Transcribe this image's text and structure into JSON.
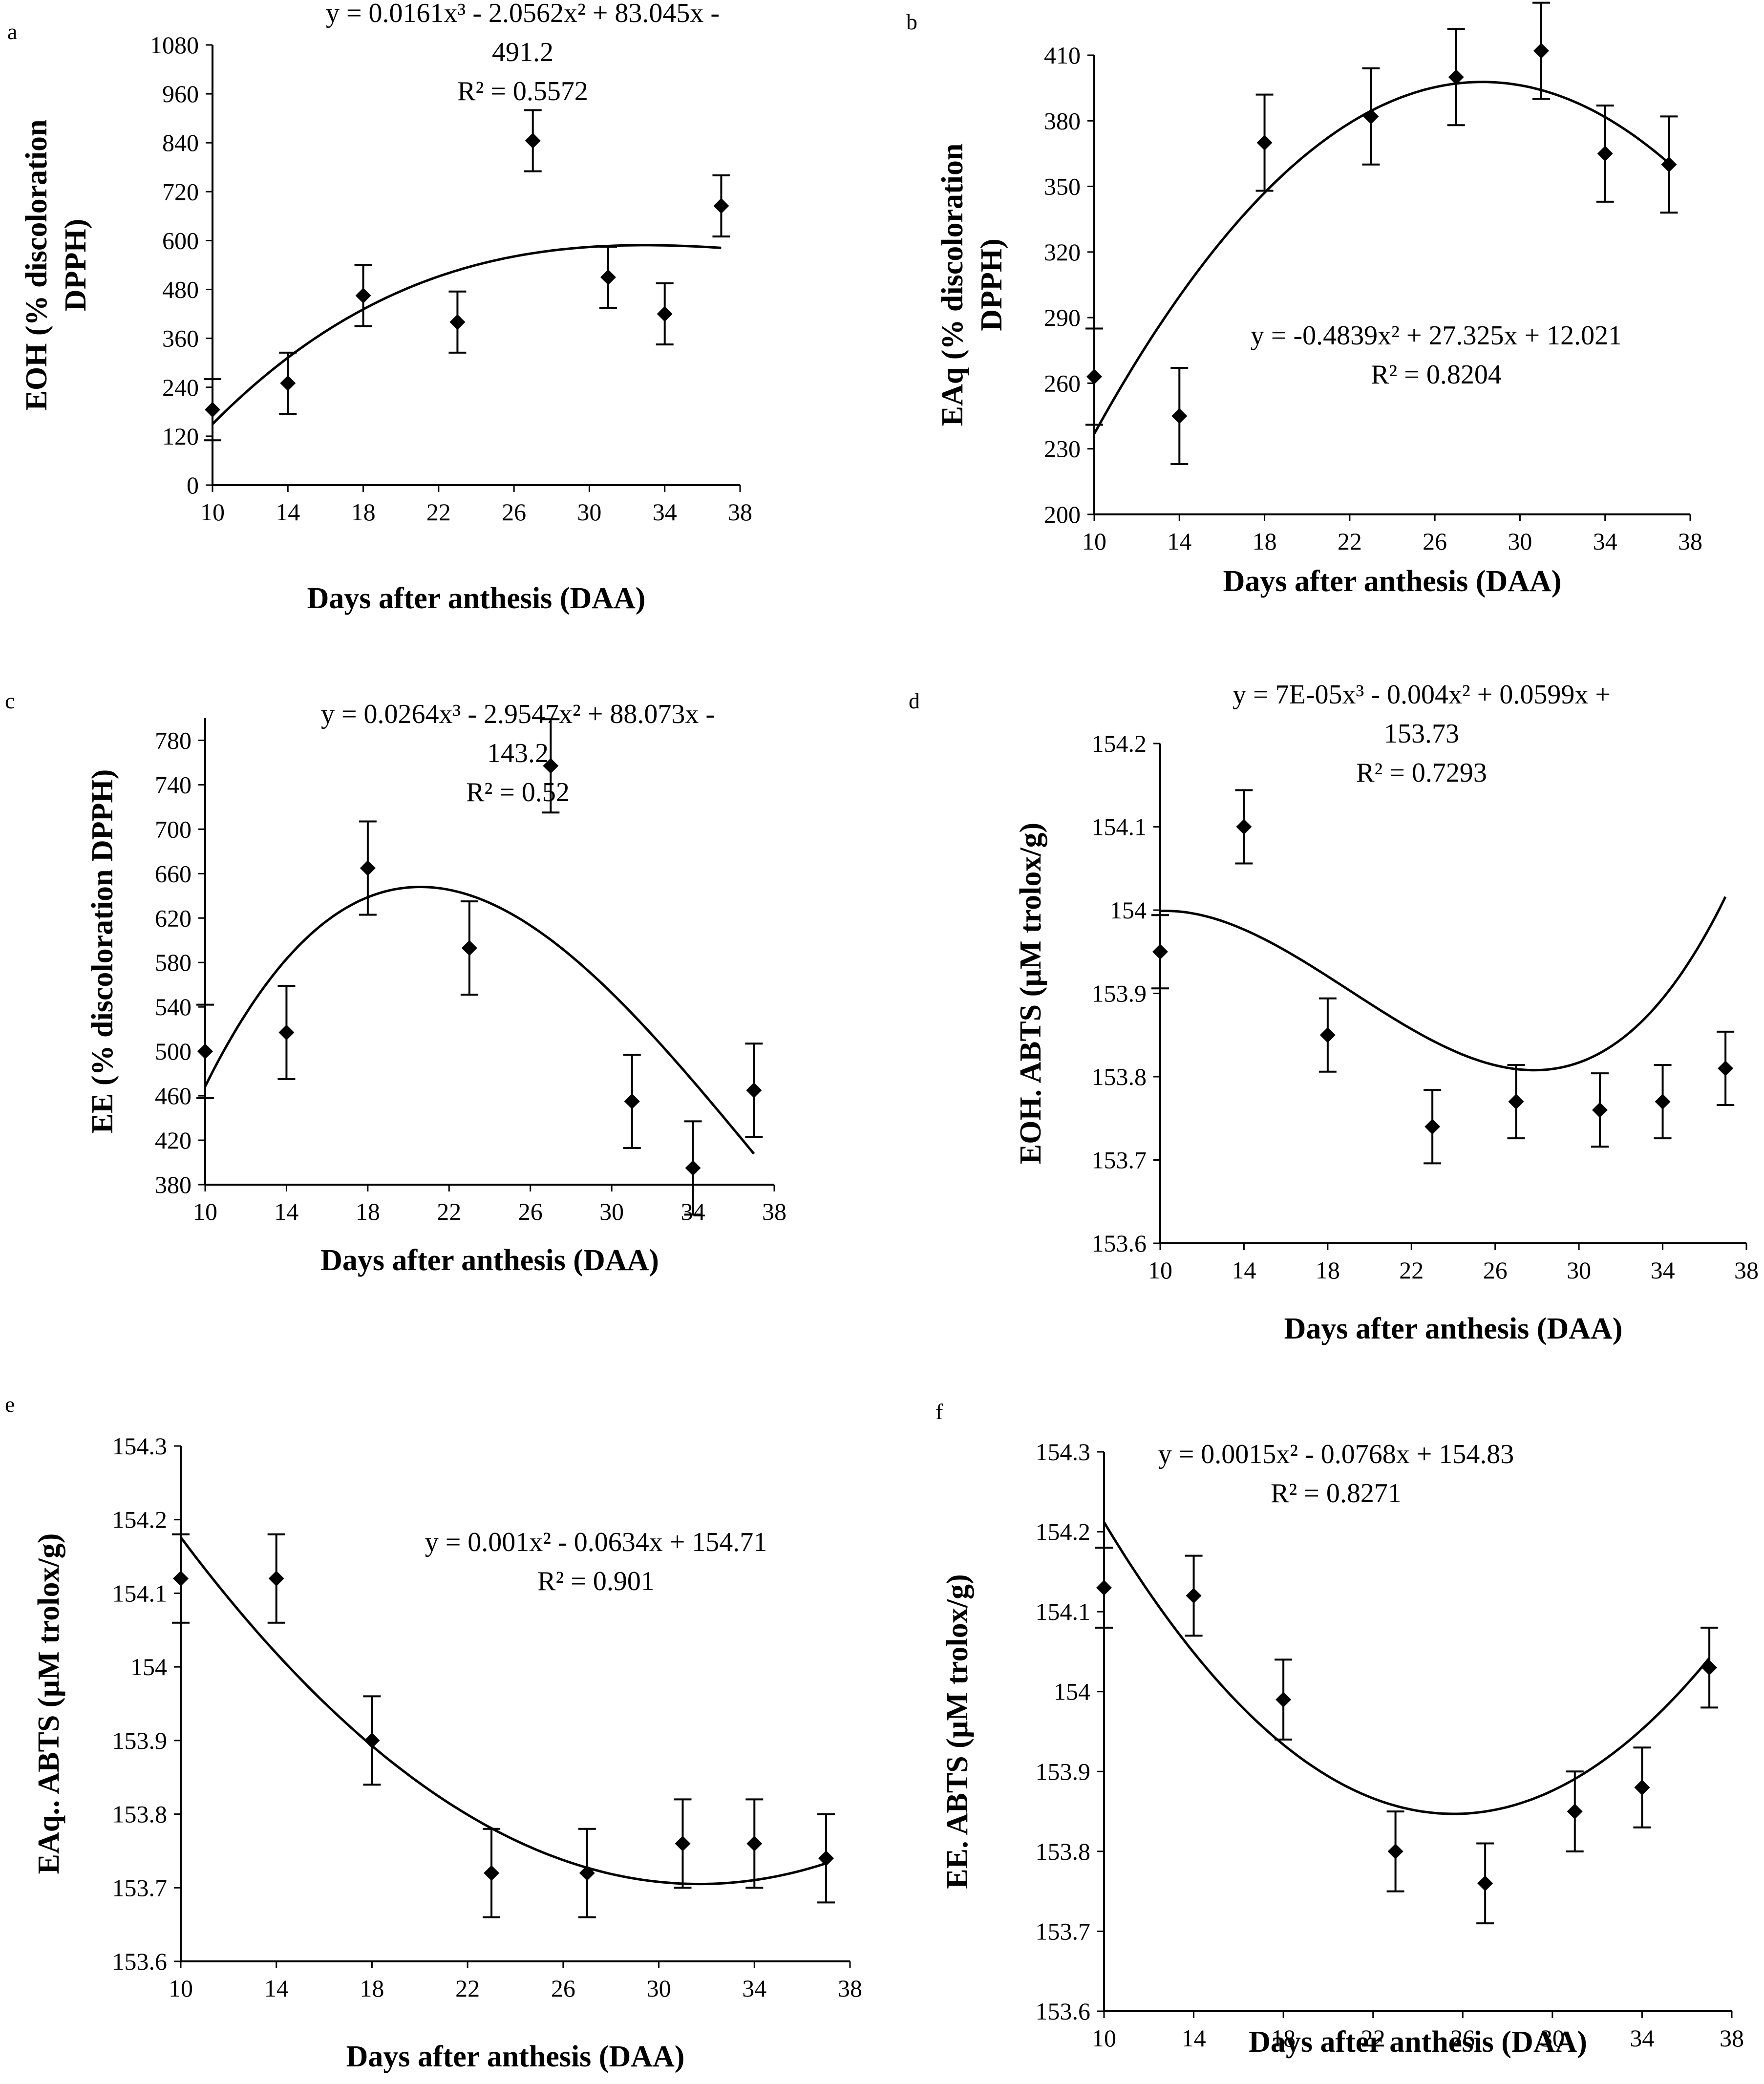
{
  "chart_data": [
    {
      "panel": "a",
      "type": "scatter",
      "xlabel": "Days after anthesis  (DAA)",
      "ylabel": [
        "EOH (% discoloration",
        "DPPH)"
      ],
      "xlim": [
        10,
        38
      ],
      "ylim": [
        0,
        1080
      ],
      "xticks": [
        10,
        14,
        18,
        22,
        26,
        30,
        34,
        38
      ],
      "yticks": [
        0,
        120,
        240,
        360,
        480,
        600,
        720,
        840,
        960,
        1080
      ],
      "x": [
        10,
        14,
        18,
        23,
        27,
        31,
        34,
        37
      ],
      "y": [
        185,
        250,
        465,
        400,
        845,
        510,
        420,
        685
      ],
      "error": [
        75,
        75,
        75,
        75,
        75,
        75,
        75,
        75
      ],
      "trendline": {
        "kind": "poly3",
        "coef": [
          0.0161,
          -2.0562,
          83.045,
          -491.2
        ],
        "x_range": [
          10,
          37
        ]
      },
      "equation": [
        "y = 0.0161x³ - 2.0562x² + 83.045x -",
        "491.2",
        "R² = 0.5572"
      ]
    },
    {
      "panel": "b",
      "type": "scatter",
      "xlabel": "Days after anthesis  (DAA)",
      "ylabel": [
        "EAq (% discoloration",
        "DPPH)"
      ],
      "xlim": [
        10,
        38
      ],
      "ylim": [
        200,
        410
      ],
      "xticks": [
        10,
        14,
        18,
        22,
        26,
        30,
        34,
        38
      ],
      "yticks": [
        200,
        230,
        260,
        290,
        320,
        350,
        380,
        410
      ],
      "x": [
        10,
        14,
        18,
        23,
        27,
        31,
        34,
        37
      ],
      "y": [
        263,
        245,
        370,
        382,
        400,
        412,
        365,
        360
      ],
      "error": [
        22,
        22,
        22,
        22,
        22,
        22,
        22,
        22
      ],
      "trendline": {
        "kind": "poly2",
        "coef": [
          -0.4839,
          27.325,
          12.021
        ],
        "x_range": [
          10,
          37
        ]
      },
      "equation": [
        "y = -0.4839x² + 27.325x + 12.021",
        "R² = 0.8204"
      ]
    },
    {
      "panel": "c",
      "type": "scatter",
      "xlabel": "Days after anthesis  (DAA)",
      "ylabel": [
        "EE (% discoloration DPPH)"
      ],
      "xlim": [
        10,
        38
      ],
      "ylim": [
        380,
        800
      ],
      "xticks": [
        10,
        14,
        18,
        22,
        26,
        30,
        34,
        38
      ],
      "yticks": [
        380,
        420,
        460,
        500,
        540,
        580,
        620,
        660,
        700,
        740,
        780
      ],
      "x": [
        10,
        14,
        18,
        23,
        27,
        31,
        34,
        37
      ],
      "y": [
        500,
        517,
        665,
        593,
        757,
        455,
        395,
        465
      ],
      "error": [
        42,
        42,
        42,
        42,
        42,
        42,
        42,
        42
      ],
      "trendline": {
        "kind": "poly3",
        "coef": [
          0.0264,
          -2.9547,
          88.073,
          -143.2
        ],
        "x_range": [
          10,
          37
        ]
      },
      "equation": [
        "y = 0.0264x³ - 2.9547x² + 88.073x -",
        "143.2",
        "R² = 0.52"
      ]
    },
    {
      "panel": "d",
      "type": "scatter",
      "xlabel": "Days after anthesis  (DAA)",
      "ylabel": [
        "EOH. ABTS (µM trolox/g)"
      ],
      "xlim": [
        10,
        38
      ],
      "ylim": [
        153.6,
        154.2
      ],
      "xticks": [
        10,
        14,
        18,
        22,
        26,
        30,
        34,
        38
      ],
      "yticks": [
        153.6,
        153.7,
        153.8,
        153.9,
        154,
        154.1,
        154.2
      ],
      "ytick_labels": [
        "153.6",
        "153.7",
        "153.8",
        "153.9",
        "154",
        "154.1",
        "154.2"
      ],
      "x": [
        10,
        14,
        18,
        23,
        27,
        31,
        34,
        37
      ],
      "y": [
        153.95,
        154.1,
        153.85,
        153.74,
        153.77,
        153.76,
        153.77,
        153.81
      ],
      "error": [
        0.044,
        0.044,
        0.044,
        0.044,
        0.044,
        0.044,
        0.044,
        0.044
      ],
      "trendline": {
        "kind": "poly3",
        "coef": [
          7e-05,
          -0.004,
          0.0599,
          153.73
        ],
        "x_range": [
          10,
          37
        ]
      },
      "equation": [
        "y = 7E-05x³ - 0.004x² + 0.0599x +",
        "153.73",
        "R² = 0.7293"
      ]
    },
    {
      "panel": "e",
      "type": "scatter",
      "xlabel": "Days after anthesis (DAA)",
      "ylabel": [
        "EAq.. ABTS (µM trolox/g)"
      ],
      "xlim": [
        10,
        38
      ],
      "ylim": [
        153.6,
        154.3
      ],
      "xticks": [
        10,
        14,
        18,
        22,
        26,
        30,
        34,
        38
      ],
      "yticks": [
        153.6,
        153.7,
        153.8,
        153.9,
        154,
        154.1,
        154.2,
        154.3
      ],
      "ytick_labels": [
        "153.6",
        "153.7",
        "153.8",
        "153.9",
        "154",
        "154.1",
        "154.2",
        "154.3"
      ],
      "x": [
        10,
        14,
        18,
        23,
        27,
        31,
        34,
        37
      ],
      "y": [
        154.12,
        154.12,
        153.9,
        153.72,
        153.72,
        153.76,
        153.76,
        153.74
      ],
      "error": [
        0.06,
        0.06,
        0.06,
        0.06,
        0.06,
        0.06,
        0.06,
        0.06
      ],
      "trendline": {
        "kind": "poly2",
        "coef": [
          0.001,
          -0.0634,
          154.71
        ],
        "x_range": [
          10,
          37
        ]
      },
      "equation": [
        "y = 0.001x² - 0.0634x + 154.71",
        "R² = 0.901"
      ]
    },
    {
      "panel": "f",
      "type": "scatter",
      "xlabel": "Days after anthesis  (DAA)",
      "ylabel": [
        "EE. ABTS (µM trolox/g)"
      ],
      "xlim": [
        10,
        38
      ],
      "ylim": [
        153.6,
        154.3
      ],
      "xticks": [
        10,
        14,
        18,
        22,
        26,
        30,
        34,
        38
      ],
      "yticks": [
        153.6,
        153.7,
        153.8,
        153.9,
        154,
        154.1,
        154.2,
        154.3
      ],
      "ytick_labels": [
        "153.6",
        "153.7",
        "153.8",
        "153.9",
        "154",
        "154.1",
        "154.2",
        "154.3"
      ],
      "x": [
        10,
        14,
        18,
        23,
        27,
        31,
        34,
        37
      ],
      "y": [
        154.13,
        154.12,
        153.99,
        153.8,
        153.76,
        153.85,
        153.88,
        154.03
      ],
      "error": [
        0.05,
        0.05,
        0.05,
        0.05,
        0.05,
        0.05,
        0.05,
        0.05
      ],
      "trendline": {
        "kind": "poly2",
        "coef": [
          0.0015,
          -0.0768,
          154.83
        ],
        "x_range": [
          10,
          37
        ]
      },
      "equation": [
        "y = 0.0015x² - 0.0768x + 154.83",
        "R² = 0.8271"
      ]
    }
  ]
}
